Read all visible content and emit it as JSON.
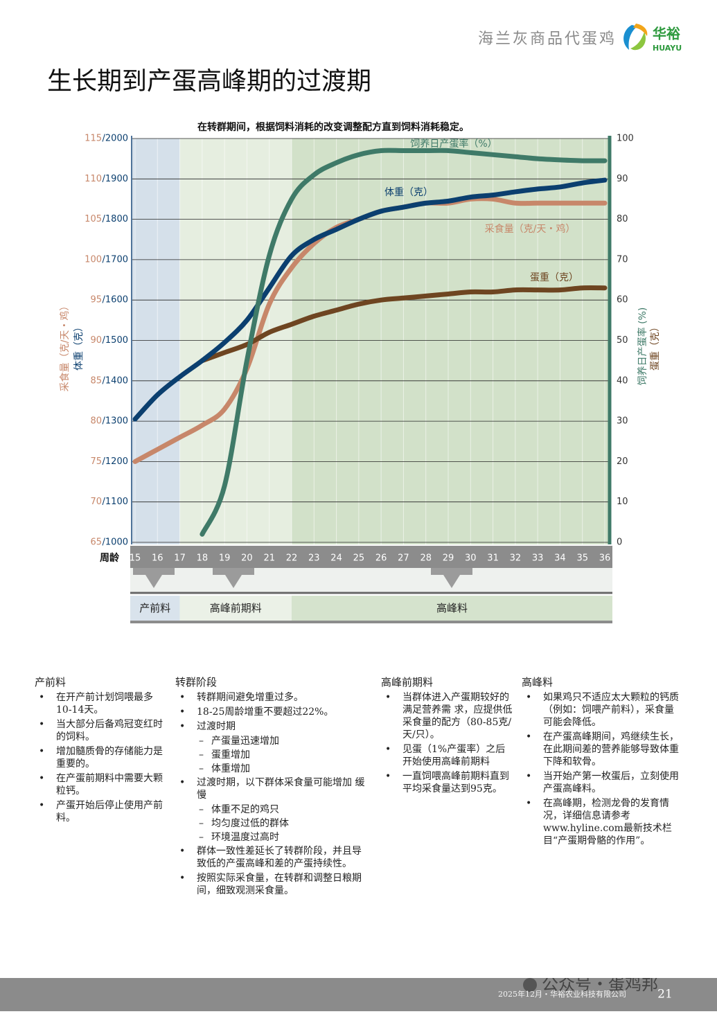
{
  "header": {
    "subtitle": "海兰灰商品代蛋鸡",
    "logo_cn": "华裕",
    "logo_en": "HUAYU"
  },
  "title": "生长期到产蛋高峰期的过渡期",
  "chart_data": {
    "type": "line",
    "title": "在转群期间，根据饲料消耗的改变调整配方直到饲料消耗稳定。",
    "x_label": "周龄",
    "y_label": "采食量（克/天・鸡）",
    "y3_label": "体重（克）",
    "y2_label": "饲养日产蛋率 (%)",
    "y2_label_2": "蛋重（克）",
    "x": [
      15,
      16,
      17,
      18,
      19,
      20,
      21,
      22,
      23,
      24,
      25,
      26,
      27,
      28,
      29,
      30,
      31,
      32,
      33,
      34,
      35,
      36
    ],
    "ylim": [
      65,
      115
    ],
    "yticks": [
      65,
      70,
      75,
      80,
      85,
      90,
      95,
      100,
      105,
      110,
      115
    ],
    "y3lim": [
      1000,
      2000
    ],
    "y3ticks": [
      {
        "value": 1000,
        "label": "/1000"
      },
      {
        "value": 1100,
        "label": "/1100"
      },
      {
        "value": 1200,
        "label": "/1200"
      },
      {
        "value": 1300,
        "label": "/1300"
      },
      {
        "value": 1400,
        "label": "/1400"
      },
      {
        "value": 1500,
        "label": "/1500"
      },
      {
        "value": 1600,
        "label": "/1600"
      },
      {
        "value": 1700,
        "label": "/1700"
      },
      {
        "value": 1800,
        "label": "/1800"
      },
      {
        "value": 1900,
        "label": "/1900"
      },
      {
        "value": 2000,
        "label": "/2000"
      }
    ],
    "y2lim": [
      0,
      100
    ],
    "y2ticks": [
      0,
      10,
      20,
      30,
      40,
      50,
      60,
      70,
      80,
      90,
      100
    ],
    "grid": true,
    "series": [
      {
        "name": "饲养日产蛋率（%）",
        "color": "#3f7a68",
        "axis": "y2",
        "values": [
          null,
          null,
          null,
          2,
          14,
          45,
          71,
          85,
          91,
          94,
          96,
          97,
          97,
          97,
          97,
          96.5,
          96,
          95.5,
          95,
          94.7,
          94.5,
          94.5
        ]
      },
      {
        "name": "体重（克）",
        "color": "#0b3f6f",
        "axis": "y3",
        "values": [
          1305,
          1365,
          1410,
          1450,
          1495,
          1550,
          1630,
          1710,
          1750,
          1775,
          1800,
          1820,
          1830,
          1840,
          1845,
          1855,
          1860,
          1868,
          1875,
          1880,
          1890,
          1897
        ]
      },
      {
        "name": "采食量（克/天・鸡）",
        "color": "#c7876a",
        "axis": "y",
        "values": [
          75,
          76.5,
          78,
          79.5,
          81.5,
          86.5,
          94.5,
          99,
          102,
          104,
          105,
          106,
          106.5,
          107,
          107,
          107.5,
          107.5,
          107,
          107,
          107,
          107,
          107
        ]
      },
      {
        "name": "蛋重（克）",
        "color": "#6e4521",
        "axis": "y2",
        "values": [
          null,
          null,
          null,
          45,
          47,
          49,
          52,
          54,
          56,
          57.5,
          59,
          60,
          60.5,
          61,
          61.5,
          62,
          62,
          62.5,
          62.5,
          62.5,
          63,
          63
        ]
      }
    ],
    "phases": [
      {
        "label": "产前料",
        "start": 15,
        "end": 17,
        "color": "#d5e0ea",
        "bar_color": "#d9e3ec"
      },
      {
        "label": "高峰前期料",
        "start": 17,
        "end": 22,
        "color": "#e6eee0",
        "bar_color": "#ebf1e7"
      },
      {
        "label": "高峰料",
        "start": 22,
        "end": 36,
        "color": "#d2e1c9",
        "bar_color": "#d5e3cd"
      }
    ]
  },
  "notes": [
    {
      "title": "产前料",
      "items": [
        {
          "text": "在开产前计划饲喂最多10-14天。"
        },
        {
          "text": "当大部分后备鸡冠变红时的饲料。"
        },
        {
          "text": "增加髓质骨的存储能力是重要的。"
        },
        {
          "text": "在产蛋前期料中需要大颗粒钙。"
        },
        {
          "text": "产蛋开始后停止使用产前料。"
        }
      ]
    },
    {
      "title": "转群阶段",
      "items": [
        {
          "text": "转群期间避免增重过多。"
        },
        {
          "text": "18-25周龄增重不要超过22%。"
        },
        {
          "text": "过渡时期",
          "subitems": [
            "产蛋量迅速增加",
            "蛋重增加",
            "体重增加"
          ]
        },
        {
          "text": "过渡时期，以下群体采食量可能增加 缓慢",
          "subitems": [
            "体重不足的鸡只",
            "均匀度过低的群体",
            "环境温度过高时"
          ]
        },
        {
          "text": "群体一致性差延长了转群阶段，并且导 致低的产蛋高峰和差的产蛋持续性。"
        },
        {
          "text": "按照实际采食量，在转群和调整日粮期 间，细致观测采食量。"
        }
      ]
    },
    {
      "title": "高峰前期料",
      "items": [
        {
          "text": "当群体进入产蛋期较好的满足营养需 求，应提供低采食量的配方（80-85克/天/只）。"
        },
        {
          "text": "见蛋（1%产蛋率）之后开始使用高峰前期料"
        },
        {
          "text": "一直饲喂高峰前期料直到平均采食量达到95克。"
        }
      ]
    },
    {
      "title": "高峰料",
      "items": [
        {
          "text": "如果鸡只不适应太大颗粒的钙质（例如：饲喂产前料），采食量可能会降低。"
        },
        {
          "text": "在产蛋高峰期间，鸡继续生长，在此期间差的营养能够导致体重下降和软骨。"
        },
        {
          "text": "当开始产第一枚蛋后，立刻使用产蛋高峰料。"
        },
        {
          "text": "在高峰期，检测龙骨的发育情况，详细信息请参考www.hyline.com最新技术栏目“产蛋期骨骼的作用”。"
        }
      ]
    }
  ],
  "footer": {
    "text": "2025年12月・华裕农业科技有限公司",
    "page": "21",
    "watermark": "公众号・蛋鸡邦"
  }
}
